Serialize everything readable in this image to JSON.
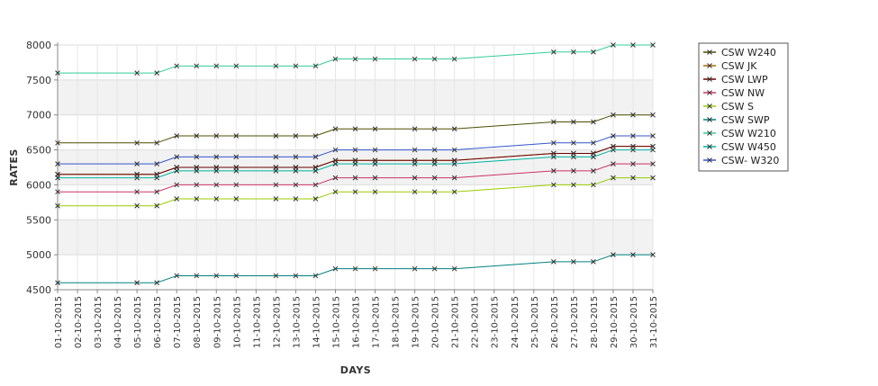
{
  "chart_data": {
    "type": "line",
    "xlabel": "DAYS",
    "ylabel": "RATES",
    "ylim": [
      4500,
      8000
    ],
    "yticks": [
      "4500",
      "5000",
      "5500",
      "6000",
      "6500",
      "7000",
      "7500",
      "8000"
    ],
    "grid": true,
    "alternating_bands": true,
    "legend_position": "right",
    "categories": [
      "01-10-2015",
      "02-10-2015",
      "03-10-2015",
      "04-10-2015",
      "05-10-2015",
      "06-10-2015",
      "07-10-2015",
      "08-10-2015",
      "09-10-2015",
      "10-10-2015",
      "11-10-2015",
      "12-10-2015",
      "13-10-2015",
      "14-10-2015",
      "15-10-2015",
      "16-10-2015",
      "17-10-2015",
      "18-10-2015",
      "19-10-2015",
      "20-10-2015",
      "21-10-2015",
      "22-10-2015",
      "23-10-2015",
      "24-10-2015",
      "25-10-2015",
      "26-10-2015",
      "27-10-2015",
      "28-10-2015",
      "29-10-2015",
      "30-10-2015",
      "31-10-2015"
    ],
    "series": [
      {
        "name": "CSW  W240",
        "color": "#4d4d00",
        "values": [
          6600,
          null,
          null,
          null,
          6600,
          6600,
          6700,
          6700,
          6700,
          6700,
          null,
          6700,
          6700,
          6700,
          6800,
          6800,
          6800,
          null,
          6800,
          6800,
          6800,
          null,
          null,
          null,
          null,
          6900,
          6900,
          6900,
          7000,
          7000,
          7000
        ]
      },
      {
        "name": "CSW JK",
        "color": "#a66b00",
        "values": [
          6150,
          null,
          null,
          null,
          6150,
          6150,
          6250,
          6250,
          6250,
          6250,
          null,
          6250,
          6250,
          6250,
          6350,
          6350,
          6350,
          null,
          6350,
          6350,
          6350,
          null,
          null,
          null,
          null,
          6450,
          6450,
          6450,
          6550,
          6550,
          6550
        ]
      },
      {
        "name": "CSW LWP",
        "color": "#6b0000",
        "values": [
          6150,
          null,
          null,
          null,
          6150,
          6150,
          6250,
          6250,
          6250,
          6250,
          null,
          6250,
          6250,
          6250,
          6350,
          6350,
          6350,
          null,
          6350,
          6350,
          6350,
          null,
          null,
          null,
          null,
          6450,
          6450,
          6450,
          6550,
          6550,
          6550
        ]
      },
      {
        "name": "CSW NW",
        "color": "#cc3366",
        "values": [
          5900,
          null,
          null,
          null,
          5900,
          5900,
          6000,
          6000,
          6000,
          6000,
          null,
          6000,
          6000,
          6000,
          6100,
          6100,
          6100,
          null,
          6100,
          6100,
          6100,
          null,
          null,
          null,
          null,
          6200,
          6200,
          6200,
          6300,
          6300,
          6300
        ]
      },
      {
        "name": "CSW S",
        "color": "#99cc00",
        "values": [
          5700,
          null,
          null,
          null,
          5700,
          5700,
          5800,
          5800,
          5800,
          5800,
          null,
          5800,
          5800,
          5800,
          5900,
          5900,
          5900,
          null,
          5900,
          5900,
          5900,
          null,
          null,
          null,
          null,
          6000,
          6000,
          6000,
          6100,
          6100,
          6100
        ]
      },
      {
        "name": "CSW SWP",
        "color": "#008080",
        "values": [
          4600,
          null,
          null,
          null,
          4600,
          4600,
          4700,
          4700,
          4700,
          4700,
          null,
          4700,
          4700,
          4700,
          4800,
          4800,
          4800,
          null,
          4800,
          4800,
          4800,
          null,
          null,
          null,
          null,
          4900,
          4900,
          4900,
          5000,
          5000,
          5000
        ]
      },
      {
        "name": "CSW W210",
        "color": "#33cc99",
        "values": [
          7600,
          null,
          null,
          null,
          7600,
          7600,
          7700,
          7700,
          7700,
          7700,
          null,
          7700,
          7700,
          7700,
          7800,
          7800,
          7800,
          null,
          7800,
          7800,
          7800,
          null,
          null,
          null,
          null,
          7900,
          7900,
          7900,
          8000,
          8000,
          8000
        ]
      },
      {
        "name": "CSW W450",
        "color": "#00b3a0",
        "values": [
          6100,
          null,
          null,
          null,
          6100,
          6100,
          6200,
          6200,
          6200,
          6200,
          null,
          6200,
          6200,
          6200,
          6300,
          6300,
          6300,
          null,
          6300,
          6300,
          6300,
          null,
          null,
          null,
          null,
          6400,
          6400,
          6400,
          6500,
          6500,
          6500
        ]
      },
      {
        "name": "CSW- W320",
        "color": "#3355cc",
        "values": [
          6300,
          null,
          null,
          null,
          6300,
          6300,
          6400,
          6400,
          6400,
          6400,
          null,
          6400,
          6400,
          6400,
          6500,
          6500,
          6500,
          null,
          6500,
          6500,
          6500,
          null,
          null,
          null,
          null,
          6600,
          6600,
          6600,
          6700,
          6700,
          6700
        ]
      }
    ]
  }
}
